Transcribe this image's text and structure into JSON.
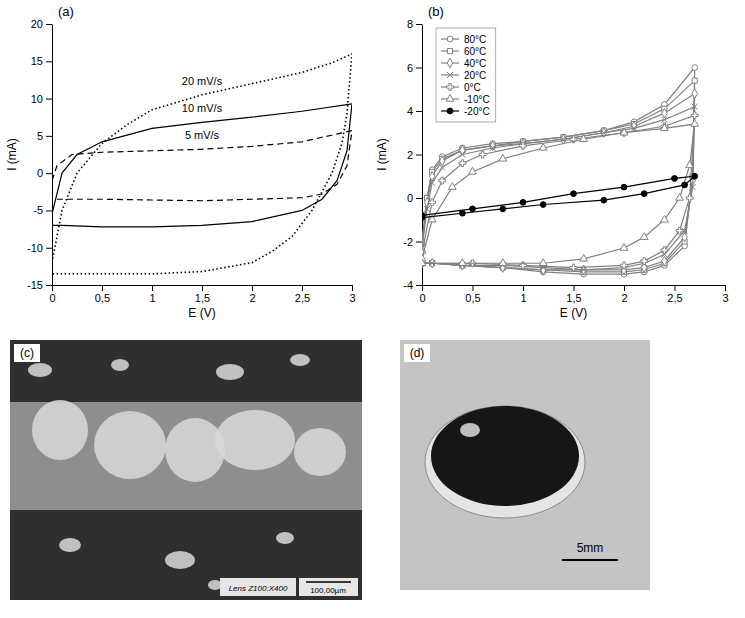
{
  "chart_data": [
    {
      "type": "line",
      "panel": "(a)",
      "x_label": "E (V)",
      "y_label": "I (mA)",
      "xlim": [
        0,
        3
      ],
      "xticks": [
        0,
        {
          "value": 0.5,
          "label": "0,5"
        },
        1,
        {
          "value": 1.5,
          "label": "1,5"
        },
        2,
        {
          "value": 2.5,
          "label": "2,5"
        },
        3
      ],
      "ylim": [
        -15,
        20
      ],
      "yticks": [
        -15,
        -10,
        -5,
        0,
        5,
        10,
        15,
        20
      ],
      "series": [
        {
          "name": "20 mV/s",
          "color": "#000000",
          "line_style": "dotted",
          "x": [
            0,
            0.1,
            0.25,
            0.5,
            0.75,
            1,
            1.5,
            2,
            2.5,
            2.8,
            3,
            2.95,
            2.9,
            2.8,
            2.6,
            2.4,
            2.2,
            2,
            1.5,
            1,
            0.5,
            0.1,
            0,
            0
          ],
          "values": [
            -12,
            -5,
            0,
            4,
            6.5,
            8.5,
            10.5,
            12,
            13.5,
            14.8,
            16,
            8,
            4,
            0,
            -5,
            -8.5,
            -10.5,
            -12,
            -13.2,
            -13.5,
            -13.5,
            -13.5,
            -13.5,
            -12
          ]
        },
        {
          "name": "10 mV/s",
          "color": "#000000",
          "line_style": "solid",
          "x": [
            0,
            0.1,
            0.25,
            0.5,
            1,
            1.5,
            2,
            2.5,
            3,
            2.95,
            2.85,
            2.7,
            2.5,
            2,
            1.5,
            1,
            0.5,
            0.1,
            0,
            0
          ],
          "values": [
            -5.5,
            0,
            2.5,
            4.2,
            6,
            6.8,
            7.5,
            8.3,
            9.3,
            3,
            -1,
            -3.5,
            -5,
            -6.5,
            -7,
            -7.2,
            -7.2,
            -7,
            -7,
            -5.5
          ]
        },
        {
          "name": "5 mV/s",
          "color": "#000000",
          "line_style": "dashed",
          "x": [
            0,
            0.05,
            0.2,
            0.5,
            1,
            1.5,
            2,
            2.5,
            3,
            2.95,
            2.85,
            2.7,
            2.5,
            2,
            1.5,
            1,
            0.5,
            0.1,
            0,
            0
          ],
          "values": [
            -1,
            1,
            2.5,
            2.8,
            3,
            3.2,
            3.6,
            4.2,
            5.7,
            1,
            -1.5,
            -2.8,
            -3.3,
            -3.5,
            -3.7,
            -3.6,
            -3.5,
            -3.5,
            -3.5,
            -1
          ]
        }
      ]
    },
    {
      "type": "line",
      "panel": "(b)",
      "x_label": "E (V)",
      "y_label": "I (mA)",
      "legend": "upper left",
      "xlim": [
        0,
        3
      ],
      "xticks": [
        0,
        {
          "value": 0.5,
          "label": "0,5"
        },
        1,
        {
          "value": 1.5,
          "label": "1,5"
        },
        2,
        {
          "value": 2.5,
          "label": "2,5"
        },
        3
      ],
      "ylim": [
        -4,
        8
      ],
      "yticks": [
        -4,
        -2,
        0,
        2,
        4,
        6,
        8
      ],
      "series": [
        {
          "name": "80°C",
          "color": "#808080",
          "marker": "circle",
          "line_style": "solid",
          "x": [
            0,
            0.05,
            0.1,
            0.2,
            0.4,
            0.7,
            1,
            1.4,
            1.8,
            2.1,
            2.4,
            2.7,
            2.68,
            2.6,
            2.4,
            2.2,
            2,
            1.6,
            1.2,
            0.8,
            0.4,
            0.1,
            0
          ],
          "values": [
            -2,
            0,
            1.3,
            1.9,
            2.3,
            2.5,
            2.6,
            2.8,
            3.1,
            3.5,
            4.3,
            6,
            1,
            -2.2,
            -3.1,
            -3.4,
            -3.5,
            -3.5,
            -3.4,
            -3.2,
            -3.1,
            -3,
            -3
          ]
        },
        {
          "name": "60°C",
          "color": "#808080",
          "marker": "square",
          "line_style": "solid",
          "x": [
            0,
            0.05,
            0.1,
            0.2,
            0.4,
            0.7,
            1,
            1.4,
            1.8,
            2.1,
            2.4,
            2.7,
            2.68,
            2.6,
            2.4,
            2.2,
            2,
            1.6,
            1.2,
            0.8,
            0.4,
            0.1,
            0
          ],
          "values": [
            -2,
            0,
            1.2,
            1.8,
            2.2,
            2.4,
            2.6,
            2.8,
            3.1,
            3.4,
            4.1,
            5.4,
            1,
            -2,
            -3,
            -3.3,
            -3.4,
            -3.4,
            -3.3,
            -3.2,
            -3.1,
            -3,
            -3
          ]
        },
        {
          "name": "40°C",
          "color": "#808080",
          "marker": "diamond",
          "line_style": "solid",
          "x": [
            0,
            0.05,
            0.1,
            0.2,
            0.4,
            0.7,
            1,
            1.4,
            1.8,
            2.1,
            2.4,
            2.7,
            2.68,
            2.6,
            2.4,
            2.2,
            2,
            1.6,
            1.2,
            0.8,
            0.4,
            0.1,
            0
          ],
          "values": [
            -2.1,
            -0.2,
            1,
            1.7,
            2.2,
            2.4,
            2.5,
            2.7,
            3,
            3.3,
            3.9,
            4.8,
            0.8,
            -1.8,
            -2.9,
            -3.2,
            -3.3,
            -3.3,
            -3.3,
            -3.2,
            -3.1,
            -3,
            -3
          ]
        },
        {
          "name": "20°C",
          "color": "#808080",
          "marker": "x",
          "line_style": "solid",
          "x": [
            0,
            0.05,
            0.1,
            0.2,
            0.4,
            0.7,
            1,
            1.4,
            1.8,
            2.1,
            2.4,
            2.7,
            2.68,
            2.6,
            2.4,
            2.2,
            2,
            1.6,
            1.2,
            0.8,
            0.4,
            0.1,
            0
          ],
          "values": [
            -2.3,
            -0.5,
            0.7,
            1.4,
            2,
            2.3,
            2.5,
            2.7,
            3,
            3.2,
            3.6,
            4.2,
            0.5,
            -1.5,
            -2.6,
            -3,
            -3.2,
            -3.3,
            -3.2,
            -3.1,
            -3.1,
            -3,
            -3
          ]
        },
        {
          "name": "0°C",
          "color": "#808080",
          "marker": "plus",
          "line_style": "solid",
          "x": [
            0,
            0.1,
            0.2,
            0.4,
            0.6,
            1,
            1.5,
            2,
            2.4,
            2.7,
            2.65,
            2.55,
            2.4,
            2.2,
            2,
            1.5,
            1,
            0.5,
            0
          ],
          "values": [
            -2.5,
            -0.2,
            0.8,
            1.6,
            2,
            2.4,
            2.7,
            3,
            3.3,
            3.8,
            0,
            -1.5,
            -2.4,
            -2.9,
            -3.1,
            -3.2,
            -3.1,
            -3,
            -3
          ]
        },
        {
          "name": "-10°C",
          "color": "#808080",
          "marker": "triangle",
          "line_style": "solid",
          "x": [
            0,
            0.1,
            0.3,
            0.5,
            0.8,
            1.2,
            1.6,
            2,
            2.4,
            2.7,
            2.65,
            2.55,
            2.4,
            2.2,
            2,
            1.6,
            1.2,
            0.8,
            0.4,
            0
          ],
          "values": [
            -2.8,
            -1,
            0.5,
            1.2,
            1.8,
            2.3,
            2.7,
            3,
            3.2,
            3.4,
            1.5,
            0,
            -1,
            -1.8,
            -2.3,
            -2.8,
            -3,
            -3,
            -3,
            -3
          ]
        },
        {
          "name": "-20°C",
          "color": "#000000",
          "marker": "dot",
          "line_style": "solid",
          "x": [
            0,
            0.5,
            1,
            1.5,
            2,
            2.5,
            2.7,
            2.6,
            2.2,
            1.8,
            1.2,
            0.8,
            0.4,
            0
          ],
          "values": [
            -0.8,
            -0.5,
            -0.2,
            0.2,
            0.5,
            0.9,
            1,
            0.6,
            0.2,
            -0.1,
            -0.3,
            -0.5,
            -0.7,
            -0.9
          ]
        }
      ]
    }
  ],
  "images": [
    {
      "panel": "(c)",
      "lens": "Lens Z100:X400",
      "scale_bar": "100,00µm"
    },
    {
      "panel": "(d)",
      "scale_bar": "5mm"
    }
  ]
}
